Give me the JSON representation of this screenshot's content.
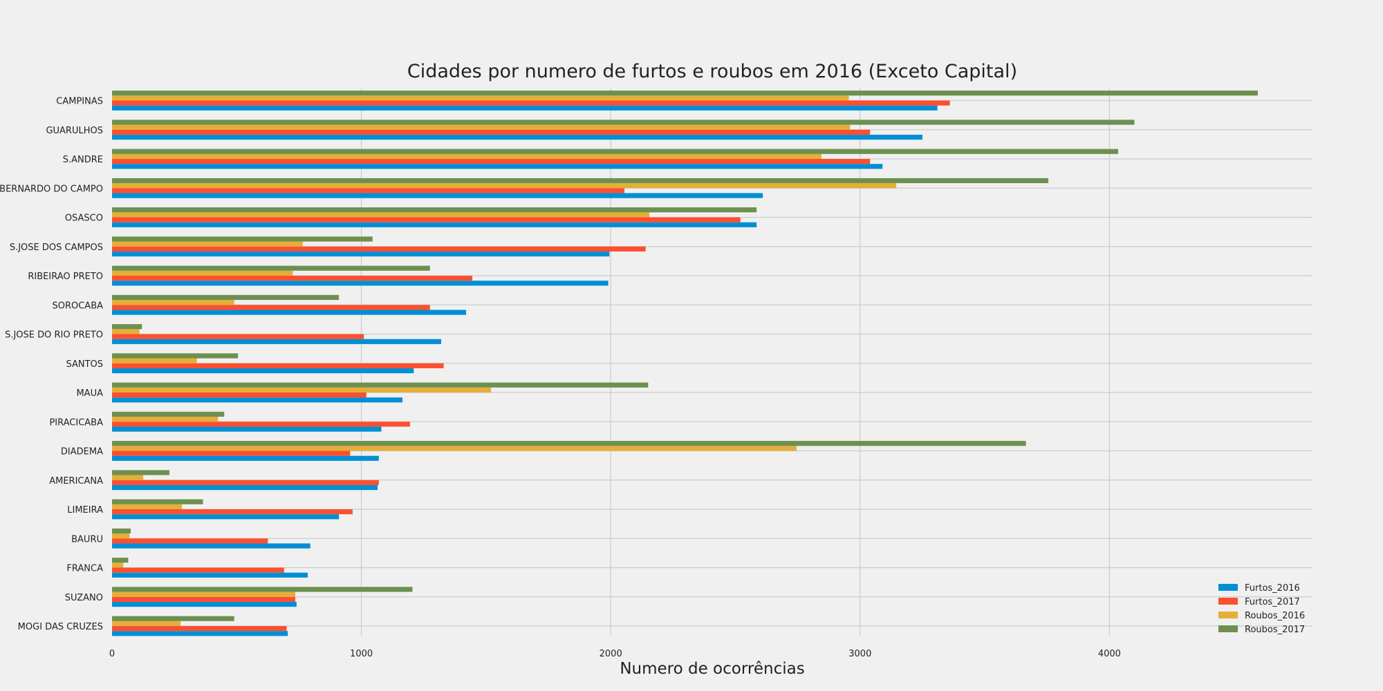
{
  "chart_data": {
    "type": "bar",
    "orientation": "horizontal",
    "title": "Cidades por numero de furtos e roubos em 2016 (Exceto Capital)",
    "xlabel": "Numero de ocorrências",
    "ylabel": "",
    "xlim": [
      0,
      4820
    ],
    "xticks": [
      0,
      1000,
      2000,
      3000,
      4000
    ],
    "grid": true,
    "legend_position": "bottom-right",
    "categories": [
      "CAMPINAS",
      "GUARULHOS",
      "S.ANDRE",
      "S.BERNARDO DO CAMPO",
      "OSASCO",
      "S.JOSE DOS CAMPOS",
      "RIBEIRAO PRETO",
      "SOROCABA",
      "S.JOSE DO RIO PRETO",
      "SANTOS",
      "MAUA",
      "PIRACICABA",
      "DIADEMA",
      "AMERICANA",
      "LIMEIRA",
      "BAURU",
      "FRANCA",
      "SUZANO",
      "MOGI DAS CRUZES"
    ],
    "series": [
      {
        "name": "Furtos_2016",
        "color": "#008fd5",
        "values": [
          3310,
          3250,
          3090,
          2610,
          2585,
          1995,
          1990,
          1420,
          1320,
          1210,
          1165,
          1080,
          1070,
          1065,
          910,
          795,
          785,
          740,
          705
        ]
      },
      {
        "name": "Furtos_2017",
        "color": "#fc4f30",
        "values": [
          3360,
          3040,
          3040,
          2055,
          2520,
          2140,
          1445,
          1275,
          1010,
          1330,
          1020,
          1195,
          955,
          1070,
          965,
          625,
          690,
          735,
          700
        ]
      },
      {
        "name": "Roubos_2016",
        "color": "#e5ae38",
        "values": [
          2955,
          2960,
          2845,
          3145,
          2155,
          765,
          725,
          490,
          110,
          340,
          1520,
          425,
          2745,
          125,
          280,
          70,
          45,
          735,
          275
        ]
      },
      {
        "name": "Roubos_2017",
        "color": "#6d904f",
        "values": [
          4595,
          4100,
          4035,
          3755,
          2585,
          1045,
          1275,
          910,
          120,
          505,
          2150,
          450,
          3665,
          230,
          365,
          75,
          65,
          1205,
          490
        ]
      }
    ]
  }
}
